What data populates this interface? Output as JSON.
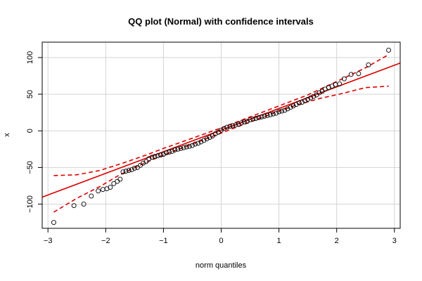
{
  "chart_data": {
    "type": "scatter",
    "title": "QQ plot (Normal) with confidence intervals",
    "xlabel": "norm quantiles",
    "ylabel": "x",
    "xlim": [
      -3.1,
      3.1
    ],
    "ylim": [
      -133,
      121
    ],
    "xticks": [
      -3,
      -2,
      -1,
      0,
      1,
      2,
      3
    ],
    "yticks": [
      -100,
      -50,
      0,
      50,
      100
    ],
    "grid": true,
    "colors": {
      "points": "#000000",
      "reference": "#dd0000",
      "band": "#dd0000",
      "grid": "#d3d3d3"
    },
    "points": [
      [
        -2.9,
        -125
      ],
      [
        -2.55,
        -102
      ],
      [
        -2.38,
        -100
      ],
      [
        -2.25,
        -89
      ],
      [
        -2.13,
        -82
      ],
      [
        -2.05,
        -80
      ],
      [
        -1.98,
        -79
      ],
      [
        -1.92,
        -77
      ],
      [
        -1.86,
        -72
      ],
      [
        -1.8,
        -69
      ],
      [
        -1.75,
        -66
      ],
      [
        -1.7,
        -56
      ],
      [
        -1.65,
        -55
      ],
      [
        -1.6,
        -54
      ],
      [
        -1.55,
        -53
      ],
      [
        -1.5,
        -51
      ],
      [
        -1.45,
        -50
      ],
      [
        -1.4,
        -47
      ],
      [
        -1.35,
        -44
      ],
      [
        -1.3,
        -42
      ],
      [
        -1.25,
        -38
      ],
      [
        -1.2,
        -36
      ],
      [
        -1.15,
        -35
      ],
      [
        -1.1,
        -34
      ],
      [
        -1.05,
        -33
      ],
      [
        -1.0,
        -32
      ],
      [
        -0.95,
        -30
      ],
      [
        -0.9,
        -29
      ],
      [
        -0.85,
        -28
      ],
      [
        -0.8,
        -26
      ],
      [
        -0.75,
        -25
      ],
      [
        -0.7,
        -24
      ],
      [
        -0.65,
        -23
      ],
      [
        -0.6,
        -22
      ],
      [
        -0.55,
        -21
      ],
      [
        -0.5,
        -20
      ],
      [
        -0.45,
        -18
      ],
      [
        -0.4,
        -17
      ],
      [
        -0.35,
        -15
      ],
      [
        -0.3,
        -13
      ],
      [
        -0.25,
        -11
      ],
      [
        -0.2,
        -9
      ],
      [
        -0.15,
        -7
      ],
      [
        -0.1,
        -4
      ],
      [
        -0.05,
        -2
      ],
      [
        0.0,
        1
      ],
      [
        0.05,
        3
      ],
      [
        0.1,
        5
      ],
      [
        0.15,
        6
      ],
      [
        0.2,
        7
      ],
      [
        0.25,
        8
      ],
      [
        0.3,
        9
      ],
      [
        0.35,
        11
      ],
      [
        0.4,
        12
      ],
      [
        0.45,
        13
      ],
      [
        0.5,
        15
      ],
      [
        0.55,
        16
      ],
      [
        0.6,
        17
      ],
      [
        0.65,
        18
      ],
      [
        0.7,
        19
      ],
      [
        0.75,
        20
      ],
      [
        0.8,
        21
      ],
      [
        0.85,
        22
      ],
      [
        0.9,
        23
      ],
      [
        0.95,
        24
      ],
      [
        1.0,
        26
      ],
      [
        1.05,
        27
      ],
      [
        1.1,
        28
      ],
      [
        1.15,
        30
      ],
      [
        1.2,
        32
      ],
      [
        1.25,
        34
      ],
      [
        1.3,
        36
      ],
      [
        1.35,
        38
      ],
      [
        1.4,
        39
      ],
      [
        1.45,
        41
      ],
      [
        1.5,
        43
      ],
      [
        1.55,
        45
      ],
      [
        1.6,
        47
      ],
      [
        1.65,
        49
      ],
      [
        1.7,
        52
      ],
      [
        1.75,
        54
      ],
      [
        1.8,
        57
      ],
      [
        1.86,
        59
      ],
      [
        1.92,
        61
      ],
      [
        1.98,
        63
      ],
      [
        2.05,
        64
      ],
      [
        2.13,
        71
      ],
      [
        2.25,
        77
      ],
      [
        2.38,
        78
      ],
      [
        2.55,
        90
      ],
      [
        2.9,
        110
      ]
    ],
    "reference_line": {
      "intercept": 1,
      "slope": 29.5
    },
    "upper_band": [
      [
        -2.9,
        -61
      ],
      [
        -2.5,
        -60
      ],
      [
        -2.1,
        -54
      ],
      [
        -1.7,
        -44
      ],
      [
        -1.3,
        -33
      ],
      [
        -1.0,
        -24
      ],
      [
        -0.5,
        -10
      ],
      [
        0.0,
        4
      ],
      [
        0.5,
        19
      ],
      [
        1.0,
        34
      ],
      [
        1.5,
        49
      ],
      [
        1.8,
        60
      ],
      [
        2.1,
        71
      ],
      [
        2.5,
        86
      ],
      [
        2.9,
        104
      ]
    ],
    "lower_band": [
      [
        -2.9,
        -111
      ],
      [
        -2.5,
        -92
      ],
      [
        -2.1,
        -76
      ],
      [
        -1.8,
        -62
      ],
      [
        -1.5,
        -50
      ],
      [
        -1.0,
        -33
      ],
      [
        -0.5,
        -18
      ],
      [
        0.0,
        -3
      ],
      [
        0.5,
        12
      ],
      [
        1.0,
        27
      ],
      [
        1.3,
        35
      ],
      [
        1.7,
        44
      ],
      [
        2.1,
        51
      ],
      [
        2.5,
        59
      ],
      [
        2.9,
        61
      ]
    ]
  }
}
